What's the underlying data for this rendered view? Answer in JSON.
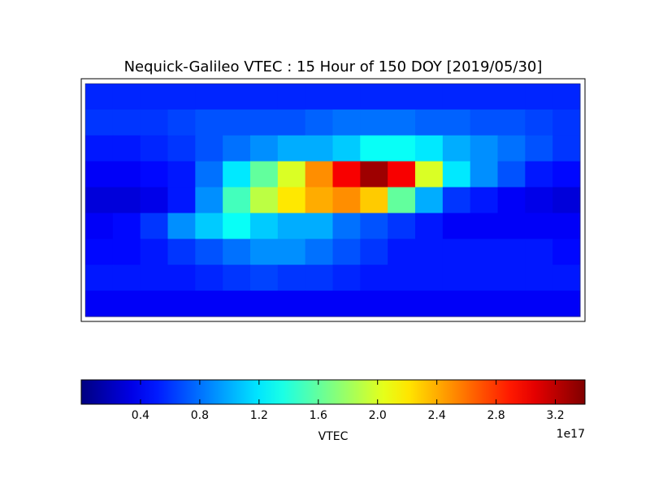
{
  "chart_data": {
    "type": "heatmap",
    "title": "Nequick-Galileo VTEC : 15 Hour of 150 DOY [2019/05/30]",
    "colormap": "jet",
    "z": [
      [
        0.55,
        0.55,
        0.55,
        0.55,
        0.55,
        0.55,
        0.55,
        0.55,
        0.55,
        0.55,
        0.55,
        0.55,
        0.55,
        0.55,
        0.55,
        0.55,
        0.55,
        0.55
      ],
      [
        0.6,
        0.6,
        0.6,
        0.65,
        0.7,
        0.7,
        0.7,
        0.7,
        0.75,
        0.8,
        0.8,
        0.8,
        0.75,
        0.75,
        0.7,
        0.7,
        0.65,
        0.6
      ],
      [
        0.5,
        0.5,
        0.55,
        0.6,
        0.7,
        0.8,
        0.9,
        1.0,
        1.0,
        1.1,
        1.3,
        1.3,
        1.2,
        1.0,
        0.9,
        0.8,
        0.7,
        0.6
      ],
      [
        0.4,
        0.4,
        0.45,
        0.5,
        0.8,
        1.2,
        1.6,
        2.0,
        2.5,
        3.0,
        3.3,
        3.0,
        2.0,
        1.2,
        0.9,
        0.7,
        0.5,
        0.45
      ],
      [
        0.3,
        0.3,
        0.35,
        0.5,
        0.9,
        1.5,
        1.9,
        2.2,
        2.4,
        2.5,
        2.3,
        1.6,
        1.0,
        0.6,
        0.5,
        0.4,
        0.35,
        0.3
      ],
      [
        0.4,
        0.45,
        0.6,
        0.9,
        1.1,
        1.3,
        1.1,
        1.0,
        1.0,
        0.8,
        0.7,
        0.6,
        0.5,
        0.4,
        0.4,
        0.4,
        0.4,
        0.4
      ],
      [
        0.45,
        0.45,
        0.5,
        0.6,
        0.7,
        0.8,
        0.9,
        0.9,
        0.8,
        0.7,
        0.6,
        0.5,
        0.5,
        0.5,
        0.5,
        0.5,
        0.5,
        0.45
      ],
      [
        0.5,
        0.5,
        0.5,
        0.5,
        0.55,
        0.6,
        0.65,
        0.6,
        0.6,
        0.55,
        0.5,
        0.5,
        0.5,
        0.5,
        0.5,
        0.5,
        0.5,
        0.5
      ],
      [
        0.4,
        0.4,
        0.4,
        0.4,
        0.4,
        0.4,
        0.4,
        0.4,
        0.4,
        0.4,
        0.4,
        0.4,
        0.4,
        0.4,
        0.4,
        0.4,
        0.4,
        0.4
      ]
    ],
    "clim": [
      0,
      3.4
    ],
    "colorbar_ticks": [
      0.4,
      0.8,
      1.2,
      1.6,
      {
        "value": 2,
        "label": "2.0"
      },
      2.4,
      2.8,
      3.2
    ],
    "colorbar_label": "VTEC",
    "offset_label": "1e17"
  }
}
